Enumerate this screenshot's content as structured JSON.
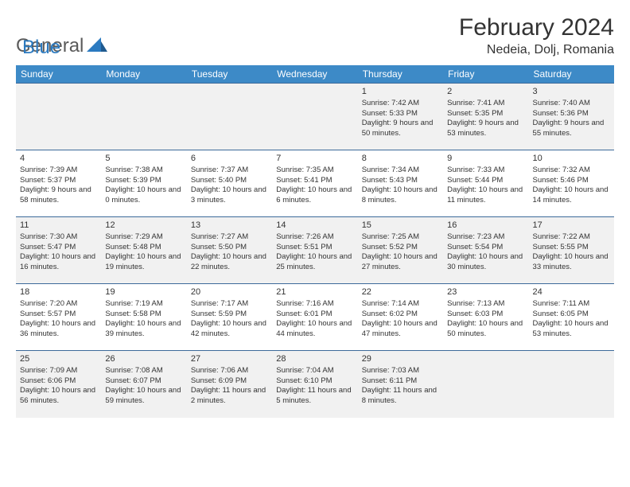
{
  "brand": {
    "word1": "General",
    "word2": "Blue"
  },
  "title": "February 2024",
  "location": "Nedeia, Dolj, Romania",
  "colors": {
    "header_bg": "#3d8ac7",
    "header_text": "#ffffff",
    "row_border": "#3d6a9a",
    "alt_row_bg": "#f1f1f1",
    "text": "#333333",
    "brand_blue": "#2b7ac0",
    "brand_gray": "#5a5a5a"
  },
  "typography": {
    "title_fontsize": 30,
    "location_fontsize": 16,
    "dow_fontsize": 12,
    "cell_fontsize": 9.5
  },
  "days_of_week": [
    "Sunday",
    "Monday",
    "Tuesday",
    "Wednesday",
    "Thursday",
    "Friday",
    "Saturday"
  ],
  "weeks": [
    [
      null,
      null,
      null,
      null,
      {
        "n": "1",
        "sr": "7:42 AM",
        "ss": "5:33 PM",
        "dl": "9 hours and 50 minutes."
      },
      {
        "n": "2",
        "sr": "7:41 AM",
        "ss": "5:35 PM",
        "dl": "9 hours and 53 minutes."
      },
      {
        "n": "3",
        "sr": "7:40 AM",
        "ss": "5:36 PM",
        "dl": "9 hours and 55 minutes."
      }
    ],
    [
      {
        "n": "4",
        "sr": "7:39 AM",
        "ss": "5:37 PM",
        "dl": "9 hours and 58 minutes."
      },
      {
        "n": "5",
        "sr": "7:38 AM",
        "ss": "5:39 PM",
        "dl": "10 hours and 0 minutes."
      },
      {
        "n": "6",
        "sr": "7:37 AM",
        "ss": "5:40 PM",
        "dl": "10 hours and 3 minutes."
      },
      {
        "n": "7",
        "sr": "7:35 AM",
        "ss": "5:41 PM",
        "dl": "10 hours and 6 minutes."
      },
      {
        "n": "8",
        "sr": "7:34 AM",
        "ss": "5:43 PM",
        "dl": "10 hours and 8 minutes."
      },
      {
        "n": "9",
        "sr": "7:33 AM",
        "ss": "5:44 PM",
        "dl": "10 hours and 11 minutes."
      },
      {
        "n": "10",
        "sr": "7:32 AM",
        "ss": "5:46 PM",
        "dl": "10 hours and 14 minutes."
      }
    ],
    [
      {
        "n": "11",
        "sr": "7:30 AM",
        "ss": "5:47 PM",
        "dl": "10 hours and 16 minutes."
      },
      {
        "n": "12",
        "sr": "7:29 AM",
        "ss": "5:48 PM",
        "dl": "10 hours and 19 minutes."
      },
      {
        "n": "13",
        "sr": "7:27 AM",
        "ss": "5:50 PM",
        "dl": "10 hours and 22 minutes."
      },
      {
        "n": "14",
        "sr": "7:26 AM",
        "ss": "5:51 PM",
        "dl": "10 hours and 25 minutes."
      },
      {
        "n": "15",
        "sr": "7:25 AM",
        "ss": "5:52 PM",
        "dl": "10 hours and 27 minutes."
      },
      {
        "n": "16",
        "sr": "7:23 AM",
        "ss": "5:54 PM",
        "dl": "10 hours and 30 minutes."
      },
      {
        "n": "17",
        "sr": "7:22 AM",
        "ss": "5:55 PM",
        "dl": "10 hours and 33 minutes."
      }
    ],
    [
      {
        "n": "18",
        "sr": "7:20 AM",
        "ss": "5:57 PM",
        "dl": "10 hours and 36 minutes."
      },
      {
        "n": "19",
        "sr": "7:19 AM",
        "ss": "5:58 PM",
        "dl": "10 hours and 39 minutes."
      },
      {
        "n": "20",
        "sr": "7:17 AM",
        "ss": "5:59 PM",
        "dl": "10 hours and 42 minutes."
      },
      {
        "n": "21",
        "sr": "7:16 AM",
        "ss": "6:01 PM",
        "dl": "10 hours and 44 minutes."
      },
      {
        "n": "22",
        "sr": "7:14 AM",
        "ss": "6:02 PM",
        "dl": "10 hours and 47 minutes."
      },
      {
        "n": "23",
        "sr": "7:13 AM",
        "ss": "6:03 PM",
        "dl": "10 hours and 50 minutes."
      },
      {
        "n": "24",
        "sr": "7:11 AM",
        "ss": "6:05 PM",
        "dl": "10 hours and 53 minutes."
      }
    ],
    [
      {
        "n": "25",
        "sr": "7:09 AM",
        "ss": "6:06 PM",
        "dl": "10 hours and 56 minutes."
      },
      {
        "n": "26",
        "sr": "7:08 AM",
        "ss": "6:07 PM",
        "dl": "10 hours and 59 minutes."
      },
      {
        "n": "27",
        "sr": "7:06 AM",
        "ss": "6:09 PM",
        "dl": "11 hours and 2 minutes."
      },
      {
        "n": "28",
        "sr": "7:04 AM",
        "ss": "6:10 PM",
        "dl": "11 hours and 5 minutes."
      },
      {
        "n": "29",
        "sr": "7:03 AM",
        "ss": "6:11 PM",
        "dl": "11 hours and 8 minutes."
      },
      null,
      null
    ]
  ],
  "labels": {
    "sunrise": "Sunrise: ",
    "sunset": "Sunset: ",
    "daylight": "Daylight: "
  }
}
